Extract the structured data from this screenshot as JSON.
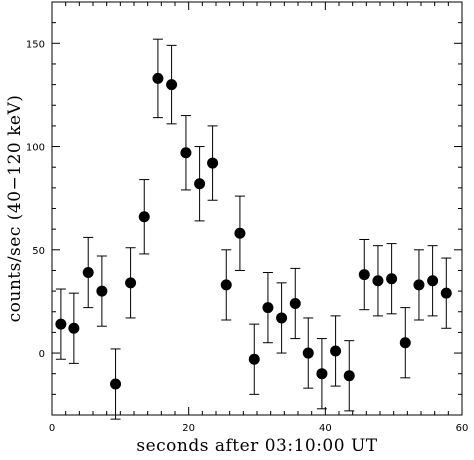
{
  "chart_data": {
    "type": "scatter",
    "title": "",
    "xlabel": "seconds after 03:10:00 UT",
    "ylabel": "counts/sec (40−120 keV)",
    "xlim": [
      0,
      60
    ],
    "ylim": [
      -30,
      170
    ],
    "x_ticks": [
      0,
      20,
      40,
      60
    ],
    "y_ticks": [
      0,
      50,
      100,
      150
    ],
    "x_tick_labels": [
      "0",
      "20",
      "40",
      "60"
    ],
    "y_tick_labels": [
      "0",
      "50",
      "100",
      "150"
    ],
    "error_bars": true,
    "grid": false,
    "points": [
      {
        "x": 1.3,
        "y": 14,
        "err": 17
      },
      {
        "x": 3.2,
        "y": 12,
        "err": 17
      },
      {
        "x": 5.3,
        "y": 39,
        "err": 17
      },
      {
        "x": 7.3,
        "y": 30,
        "err": 17
      },
      {
        "x": 9.3,
        "y": -15,
        "err": 17
      },
      {
        "x": 11.5,
        "y": 34,
        "err": 17
      },
      {
        "x": 13.5,
        "y": 66,
        "err": 18
      },
      {
        "x": 15.5,
        "y": 133,
        "err": 19
      },
      {
        "x": 17.5,
        "y": 130,
        "err": 19
      },
      {
        "x": 19.6,
        "y": 97,
        "err": 18
      },
      {
        "x": 21.6,
        "y": 82,
        "err": 18
      },
      {
        "x": 23.5,
        "y": 92,
        "err": 18
      },
      {
        "x": 25.5,
        "y": 33,
        "err": 17
      },
      {
        "x": 27.5,
        "y": 58,
        "err": 18
      },
      {
        "x": 29.6,
        "y": -3,
        "err": 17
      },
      {
        "x": 31.6,
        "y": 22,
        "err": 17
      },
      {
        "x": 33.6,
        "y": 17,
        "err": 17
      },
      {
        "x": 35.6,
        "y": 24,
        "err": 17
      },
      {
        "x": 37.5,
        "y": 0,
        "err": 17
      },
      {
        "x": 39.5,
        "y": -10,
        "err": 17
      },
      {
        "x": 41.5,
        "y": 1,
        "err": 17
      },
      {
        "x": 43.5,
        "y": -11,
        "err": 17
      },
      {
        "x": 45.7,
        "y": 38,
        "err": 17
      },
      {
        "x": 47.7,
        "y": 35,
        "err": 17
      },
      {
        "x": 49.7,
        "y": 36,
        "err": 17
      },
      {
        "x": 51.7,
        "y": 5,
        "err": 17
      },
      {
        "x": 53.7,
        "y": 33,
        "err": 17
      },
      {
        "x": 55.7,
        "y": 35,
        "err": 17
      },
      {
        "x": 57.7,
        "y": 29,
        "err": 17
      }
    ]
  }
}
